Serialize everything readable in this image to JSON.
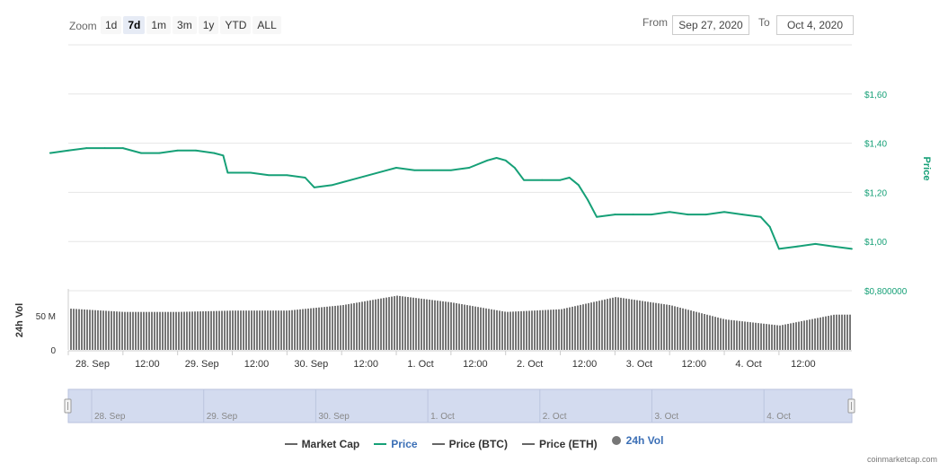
{
  "toolbar": {
    "zoom_label": "Zoom",
    "zoom_buttons": [
      "1d",
      "7d",
      "1m",
      "3m",
      "1y",
      "YTD",
      "ALL"
    ],
    "active_zoom": "7d",
    "from_label": "From",
    "from_value": "Sep 27, 2020",
    "to_label": "To",
    "to_value": "Oct 4, 2020"
  },
  "colors": {
    "price": "#16a077",
    "volume": "#777777",
    "navigator_fill": "#d3dbef",
    "gray_series": "#666666"
  },
  "chart_data": {
    "type": "line",
    "title": "",
    "price_axis": {
      "title": "Price",
      "ticks": [
        {
          "value": 0.8,
          "label": "$0,800000"
        },
        {
          "value": 1.0,
          "label": "$1,00"
        },
        {
          "value": 1.2,
          "label": "$1,20"
        },
        {
          "value": 1.4,
          "label": "$1,40"
        },
        {
          "value": 1.6,
          "label": "$1,60"
        }
      ],
      "range": [
        0.8,
        1.8
      ]
    },
    "volume_axis": {
      "title": "24h Vol",
      "ticks": [
        {
          "value": 0,
          "label": "0"
        },
        {
          "value": 50,
          "label": "50 M"
        }
      ],
      "range": [
        0,
        90
      ]
    },
    "x_axis": {
      "range": [
        "2020-09-28T00:00",
        "2020-10-05T04:00"
      ],
      "ticks": [
        {
          "t": "2020-09-28T00:00",
          "label": "28. Sep"
        },
        {
          "t": "2020-09-28T12:00",
          "label": "12:00"
        },
        {
          "t": "2020-09-29T00:00",
          "label": "29. Sep"
        },
        {
          "t": "2020-09-29T12:00",
          "label": "12:00"
        },
        {
          "t": "2020-09-30T00:00",
          "label": "30. Sep"
        },
        {
          "t": "2020-09-30T12:00",
          "label": "12:00"
        },
        {
          "t": "2020-10-01T00:00",
          "label": "1. Oct"
        },
        {
          "t": "2020-10-01T12:00",
          "label": "12:00"
        },
        {
          "t": "2020-10-02T00:00",
          "label": "2. Oct"
        },
        {
          "t": "2020-10-02T12:00",
          "label": "12:00"
        },
        {
          "t": "2020-10-03T00:00",
          "label": "3. Oct"
        },
        {
          "t": "2020-10-03T12:00",
          "label": "12:00"
        },
        {
          "t": "2020-10-04T00:00",
          "label": "4. Oct"
        },
        {
          "t": "2020-10-04T12:00",
          "label": "12:00"
        }
      ]
    },
    "series": [
      {
        "name": "Price",
        "points": [
          [
            "2020-09-27T20:00",
            1.36
          ],
          [
            "2020-09-28T00:00",
            1.37
          ],
          [
            "2020-09-28T04:00",
            1.38
          ],
          [
            "2020-09-28T08:00",
            1.38
          ],
          [
            "2020-09-28T12:00",
            1.38
          ],
          [
            "2020-09-28T16:00",
            1.36
          ],
          [
            "2020-09-28T20:00",
            1.36
          ],
          [
            "2020-09-29T00:00",
            1.37
          ],
          [
            "2020-09-29T04:00",
            1.37
          ],
          [
            "2020-09-29T08:00",
            1.36
          ],
          [
            "2020-09-29T10:00",
            1.35
          ],
          [
            "2020-09-29T11:00",
            1.28
          ],
          [
            "2020-09-29T16:00",
            1.28
          ],
          [
            "2020-09-29T20:00",
            1.27
          ],
          [
            "2020-09-30T00:00",
            1.27
          ],
          [
            "2020-09-30T04:00",
            1.26
          ],
          [
            "2020-09-30T06:00",
            1.22
          ],
          [
            "2020-09-30T10:00",
            1.23
          ],
          [
            "2020-09-30T14:00",
            1.25
          ],
          [
            "2020-09-30T18:00",
            1.27
          ],
          [
            "2020-09-30T22:00",
            1.29
          ],
          [
            "2020-10-01T00:00",
            1.3
          ],
          [
            "2020-10-01T04:00",
            1.29
          ],
          [
            "2020-10-01T08:00",
            1.29
          ],
          [
            "2020-10-01T12:00",
            1.29
          ],
          [
            "2020-10-01T16:00",
            1.3
          ],
          [
            "2020-10-01T20:00",
            1.33
          ],
          [
            "2020-10-01T22:00",
            1.34
          ],
          [
            "2020-10-02T00:00",
            1.33
          ],
          [
            "2020-10-02T02:00",
            1.3
          ],
          [
            "2020-10-02T04:00",
            1.25
          ],
          [
            "2020-10-02T08:00",
            1.25
          ],
          [
            "2020-10-02T12:00",
            1.25
          ],
          [
            "2020-10-02T14:00",
            1.26
          ],
          [
            "2020-10-02T16:00",
            1.23
          ],
          [
            "2020-10-02T18:00",
            1.17
          ],
          [
            "2020-10-02T20:00",
            1.1
          ],
          [
            "2020-10-03T00:00",
            1.11
          ],
          [
            "2020-10-03T04:00",
            1.11
          ],
          [
            "2020-10-03T08:00",
            1.11
          ],
          [
            "2020-10-03T12:00",
            1.12
          ],
          [
            "2020-10-03T16:00",
            1.11
          ],
          [
            "2020-10-03T20:00",
            1.11
          ],
          [
            "2020-10-04T00:00",
            1.12
          ],
          [
            "2020-10-04T04:00",
            1.11
          ],
          [
            "2020-10-04T08:00",
            1.1
          ],
          [
            "2020-10-04T10:00",
            1.06
          ],
          [
            "2020-10-04T12:00",
            0.97
          ],
          [
            "2020-10-04T16:00",
            0.98
          ],
          [
            "2020-10-04T20:00",
            0.99
          ],
          [
            "2020-10-05T00:00",
            0.98
          ],
          [
            "2020-10-05T04:00",
            0.97
          ]
        ]
      },
      {
        "name": "24h Vol",
        "points": [
          [
            "2020-09-28T00:00",
            61
          ],
          [
            "2020-09-28T12:00",
            56
          ],
          [
            "2020-09-29T00:00",
            56
          ],
          [
            "2020-09-29T12:00",
            58
          ],
          [
            "2020-09-30T00:00",
            58
          ],
          [
            "2020-09-30T12:00",
            66
          ],
          [
            "2020-10-01T00:00",
            80
          ],
          [
            "2020-10-01T12:00",
            70
          ],
          [
            "2020-10-02T00:00",
            56
          ],
          [
            "2020-10-02T12:00",
            60
          ],
          [
            "2020-10-03T00:00",
            78
          ],
          [
            "2020-10-03T12:00",
            66
          ],
          [
            "2020-10-04T00:00",
            45
          ],
          [
            "2020-10-04T12:00",
            36
          ],
          [
            "2020-10-05T00:00",
            52
          ],
          [
            "2020-10-05T04:00",
            52
          ]
        ]
      }
    ],
    "navigator": {
      "labels": [
        "28. Sep",
        "29. Sep",
        "30. Sep",
        "1. Oct",
        "2. Oct",
        "3. Oct",
        "4. Oct"
      ]
    }
  },
  "legend": [
    {
      "name": "Market Cap",
      "color": "#666666",
      "kind": "line"
    },
    {
      "name": "Price",
      "color": "#16a077",
      "kind": "line"
    },
    {
      "name": "Price (BTC)",
      "color": "#666666",
      "kind": "line"
    },
    {
      "name": "Price (ETH)",
      "color": "#666666",
      "kind": "line"
    },
    {
      "name": "24h Vol",
      "color": "#777777",
      "kind": "dot"
    }
  ],
  "credits": "coinmarketcap.com"
}
